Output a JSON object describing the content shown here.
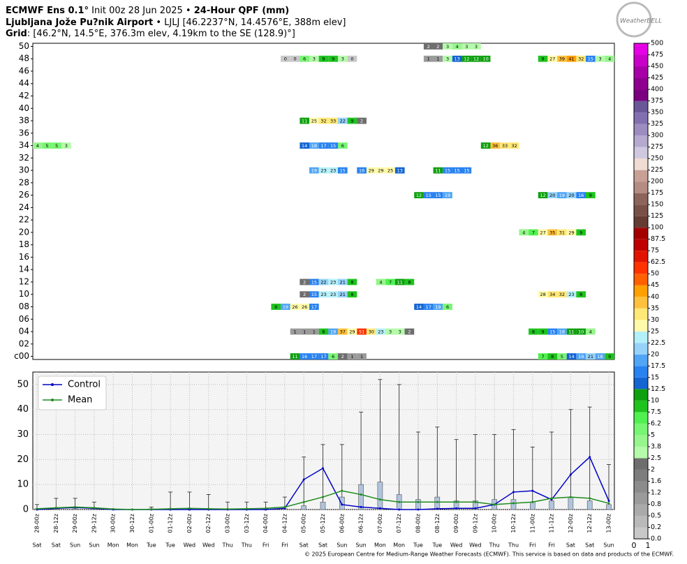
{
  "header": {
    "line1_bold": "ECMWF Ens 0.1°",
    "line1_rest": "Init 00z 28 Jun 2025 •",
    "line1_qpf": "24-Hour QPF (mm)",
    "line2_bold": "Ljubljana Jože Pu?nik Airport",
    "line2_rest": "• LJLJ [46.2237°N, 14.4576°E, 388m elev]",
    "line3_bold": "Grid",
    "line3_rest": ": [46.2°N, 14.5°E, 376.3m elev, 4.19km to the SE (128.9)°]",
    "logo": "WeatherBELL"
  },
  "footer": "© 2025 European Centre for Medium-Range Weather Forecasts (ECMWF). This service is based on data and products of the ECMWF.",
  "chart_data": [
    {
      "type": "heatmap",
      "member_ticks": [
        50,
        48,
        46,
        44,
        42,
        40,
        38,
        36,
        34,
        32,
        30,
        28,
        26,
        24,
        22,
        20,
        18,
        16,
        14,
        12,
        10,
        {
          "value": 8,
          "label": "08"
        },
        {
          "value": 6,
          "label": "06"
        },
        {
          "value": 4,
          "label": "04"
        },
        {
          "value": 2,
          "label": "02"
        },
        {
          "value": 0,
          "label": "c00"
        }
      ],
      "steps": 61,
      "cells": [
        [
          50,
          41,
          2
        ],
        [
          50,
          42,
          2
        ],
        [
          50,
          43,
          3
        ],
        [
          50,
          44,
          4
        ],
        [
          50,
          45,
          3
        ],
        [
          50,
          46,
          3
        ],
        [
          48,
          26,
          0
        ],
        [
          48,
          27,
          0
        ],
        [
          48,
          28,
          6
        ],
        [
          48,
          29,
          3
        ],
        [
          48,
          30,
          9
        ],
        [
          48,
          31,
          9
        ],
        [
          48,
          32,
          3
        ],
        [
          48,
          33,
          0
        ],
        [
          48,
          41,
          1
        ],
        [
          48,
          42,
          1
        ],
        [
          48,
          43,
          3
        ],
        [
          48,
          44,
          13
        ],
        [
          48,
          45,
          12
        ],
        [
          48,
          46,
          12
        ],
        [
          48,
          47,
          10
        ],
        [
          48,
          53,
          9
        ],
        [
          48,
          54,
          27
        ],
        [
          48,
          55,
          39
        ],
        [
          48,
          56,
          41
        ],
        [
          48,
          57,
          32
        ],
        [
          48,
          58,
          15
        ],
        [
          48,
          59,
          3
        ],
        [
          48,
          60,
          4
        ],
        [
          38,
          28,
          11
        ],
        [
          38,
          29,
          25
        ],
        [
          38,
          30,
          32
        ],
        [
          38,
          31,
          33
        ],
        [
          38,
          32,
          22
        ],
        [
          38,
          33,
          9
        ],
        [
          38,
          34,
          2
        ],
        [
          34,
          0,
          4
        ],
        [
          34,
          1,
          5
        ],
        [
          34,
          2,
          5
        ],
        [
          34,
          3,
          3
        ],
        [
          34,
          28,
          14
        ],
        [
          34,
          29,
          18
        ],
        [
          34,
          30,
          17
        ],
        [
          34,
          31,
          15
        ],
        [
          34,
          32,
          6
        ],
        [
          34,
          47,
          12
        ],
        [
          34,
          48,
          36
        ],
        [
          34,
          49,
          33
        ],
        [
          34,
          50,
          32
        ],
        [
          30,
          29,
          19
        ],
        [
          30,
          30,
          23
        ],
        [
          30,
          31,
          23
        ],
        [
          30,
          32,
          15
        ],
        [
          30,
          34,
          16
        ],
        [
          30,
          35,
          29
        ],
        [
          30,
          36,
          29
        ],
        [
          30,
          37,
          25
        ],
        [
          30,
          38,
          13
        ],
        [
          30,
          42,
          11
        ],
        [
          30,
          43,
          15
        ],
        [
          30,
          44,
          15
        ],
        [
          30,
          45,
          15
        ],
        [
          26,
          40,
          12
        ],
        [
          26,
          41,
          15
        ],
        [
          26,
          42,
          15
        ],
        [
          26,
          43,
          19
        ],
        [
          26,
          53,
          12
        ],
        [
          26,
          54,
          20
        ],
        [
          26,
          55,
          19
        ],
        [
          26,
          56,
          20
        ],
        [
          26,
          57,
          16
        ],
        [
          26,
          58,
          9
        ],
        [
          20,
          51,
          4
        ],
        [
          20,
          52,
          7
        ],
        [
          20,
          53,
          27
        ],
        [
          20,
          54,
          35
        ],
        [
          20,
          55,
          31
        ],
        [
          20,
          56,
          29
        ],
        [
          20,
          57,
          9
        ],
        [
          12,
          28,
          2
        ],
        [
          12,
          29,
          15
        ],
        [
          12,
          30,
          22
        ],
        [
          12,
          31,
          23
        ],
        [
          12,
          32,
          21
        ],
        [
          12,
          33,
          8
        ],
        [
          12,
          36,
          4
        ],
        [
          12,
          37,
          7
        ],
        [
          12,
          38,
          11
        ],
        [
          12,
          39,
          8
        ],
        [
          10,
          28,
          2
        ],
        [
          10,
          29,
          15
        ],
        [
          10,
          30,
          23
        ],
        [
          10,
          31,
          23
        ],
        [
          10,
          32,
          21
        ],
        [
          10,
          33,
          8
        ],
        [
          10,
          53,
          28
        ],
        [
          10,
          54,
          34
        ],
        [
          10,
          55,
          32
        ],
        [
          10,
          56,
          23
        ],
        [
          10,
          57,
          8
        ],
        [
          8,
          25,
          9
        ],
        [
          8,
          26,
          19
        ],
        [
          8,
          27,
          26
        ],
        [
          8,
          28,
          26
        ],
        [
          8,
          29,
          17
        ],
        [
          8,
          40,
          14
        ],
        [
          8,
          41,
          17
        ],
        [
          8,
          42,
          19
        ],
        [
          8,
          43,
          6
        ],
        [
          4,
          27,
          1
        ],
        [
          4,
          28,
          1
        ],
        [
          4,
          29,
          1
        ],
        [
          4,
          30,
          8
        ],
        [
          4,
          31,
          19
        ],
        [
          4,
          32,
          37
        ],
        [
          4,
          33,
          29
        ],
        [
          4,
          34,
          51
        ],
        [
          4,
          35,
          30
        ],
        [
          4,
          36,
          23
        ],
        [
          4,
          37,
          3
        ],
        [
          4,
          38,
          3
        ],
        [
          4,
          39,
          2
        ],
        [
          4,
          52,
          8
        ],
        [
          4,
          53,
          9
        ],
        [
          4,
          54,
          15
        ],
        [
          4,
          55,
          18
        ],
        [
          4,
          56,
          11
        ],
        [
          4,
          57,
          10
        ],
        [
          4,
          58,
          4
        ],
        [
          0,
          27,
          11
        ],
        [
          0,
          28,
          16
        ],
        [
          0,
          29,
          17
        ],
        [
          0,
          30,
          17
        ],
        [
          0,
          31,
          6
        ],
        [
          0,
          32,
          2
        ],
        [
          0,
          33,
          1
        ],
        [
          0,
          34,
          1
        ],
        [
          0,
          53,
          7
        ],
        [
          0,
          54,
          8
        ],
        [
          0,
          55,
          5
        ],
        [
          0,
          56,
          14
        ],
        [
          0,
          57,
          19
        ],
        [
          0,
          58,
          21
        ],
        [
          0,
          59,
          18
        ],
        [
          0,
          60,
          9
        ]
      ],
      "colorbar": {
        "levels": [
          {
            "value": 0,
            "label": "0.0"
          },
          0.2,
          0.5,
          0.8,
          1.2,
          1.6,
          2,
          2.5,
          3.8,
          5,
          6.2,
          7.5,
          10,
          12.5,
          15,
          17.5,
          20,
          22.5,
          25,
          30,
          35,
          40,
          45,
          50,
          62.5,
          75,
          87.5,
          100,
          125,
          150,
          175,
          200,
          225,
          250,
          275,
          300,
          325,
          350,
          375,
          400,
          425,
          450,
          475,
          500
        ],
        "colors": [
          "#c8c8c8",
          "#b9b9b9",
          "#aaaaaa",
          "#9b9b9b",
          "#8c8c8c",
          "#7d7d7d",
          "#6e6e6e",
          "#b4faaa",
          "#96f58c",
          "#78f573",
          "#50f050",
          "#1ec31e",
          "#0fa00f",
          "#1464d2",
          "#2882f0",
          "#50a5f5",
          "#96d2fa",
          "#b4f0fa",
          "#fffaaa",
          "#ffe878",
          "#ffc03c",
          "#ffa000",
          "#ff6000",
          "#ff3200",
          "#e11400",
          "#c00000",
          "#a50000",
          "#643c32",
          "#785046",
          "#8c645a",
          "#b48c82",
          "#c8a096",
          "#f0dcd2",
          "#cfc8df",
          "#b5a9cf",
          "#9c8cbf",
          "#826faf",
          "#6a5797",
          "#7a0080",
          "#900090",
          "#a800a8",
          "#c800c8",
          "#e600e6"
        ],
        "axis_ticks": [
          0,
          1
        ]
      }
    },
    {
      "type": "line",
      "categories": [
        "28-00z",
        "28-12z",
        "29-00z",
        "29-12z",
        "30-00z",
        "30-12z",
        "01-00z",
        "01-12z",
        "02-00z",
        "02-12z",
        "03-00z",
        "03-12z",
        "04-00z",
        "04-12z",
        "05-00z",
        "05-12z",
        "06-00z",
        "06-12z",
        "07-00z",
        "07-12z",
        "08-00z",
        "08-12z",
        "09-00z",
        "09-12z",
        "10-00z",
        "10-12z",
        "11-00z",
        "11-12z",
        "12-00z",
        "12-12z",
        "13-00z"
      ],
      "days": [
        "Sat",
        "Sat",
        "Sun",
        "Sun",
        "Mon",
        "Mon",
        "Tue",
        "Tue",
        "Wed",
        "Wed",
        "Thu",
        "Thu",
        "Fri",
        "Fri",
        "Sat",
        "Sat",
        "Sun",
        "Sun",
        "Mon",
        "Mon",
        "Tue",
        "Tue",
        "Wed",
        "Wed",
        "Thu",
        "Thu",
        "Fri",
        "Fri",
        "Sat",
        "Sat",
        "Sun"
      ],
      "ylim": [
        0,
        55
      ],
      "yticks": [
        0,
        10,
        20,
        30,
        40,
        50
      ],
      "grid": true,
      "legend": "upper-left",
      "series": [
        {
          "name": "Control",
          "color": "#0000c8",
          "values": [
            0,
            0.5,
            0.8,
            0.5,
            0,
            0,
            0,
            0,
            0,
            0,
            0,
            0,
            0,
            0.5,
            12,
            16.5,
            2,
            1,
            0.5,
            0,
            0,
            0.3,
            0.5,
            0.5,
            2,
            7,
            7.5,
            4,
            14,
            21,
            3.5
          ]
        },
        {
          "name": "Mean",
          "color": "#1e8c1e",
          "values": [
            0.3,
            0.7,
            1,
            0.7,
            0.2,
            0,
            0.1,
            0.3,
            0.5,
            0.3,
            0.2,
            0.3,
            0.5,
            1,
            3,
            5,
            7.5,
            6,
            4,
            3,
            3,
            3,
            3,
            3,
            2,
            2.5,
            3,
            4.5,
            5,
            4.5,
            2.5
          ]
        }
      ],
      "whisker_max": [
        2,
        4.5,
        4.5,
        3,
        0,
        0,
        1,
        7,
        7,
        6,
        3,
        3,
        3,
        5,
        21,
        26,
        26,
        39,
        52,
        50,
        31,
        33,
        28,
        30,
        30,
        32,
        25,
        31,
        40,
        41,
        18
      ],
      "box_q3": [
        0.3,
        0.3,
        0.3,
        0.3,
        0,
        0,
        0.3,
        0.3,
        0.3,
        0.3,
        0.3,
        0.3,
        0.3,
        0.3,
        1.5,
        3,
        5,
        10,
        11,
        6,
        4,
        5,
        3.5,
        3.5,
        4,
        4,
        3,
        3.5,
        5,
        3.5,
        2
      ],
      "box_color": "#b0c4de"
    }
  ]
}
